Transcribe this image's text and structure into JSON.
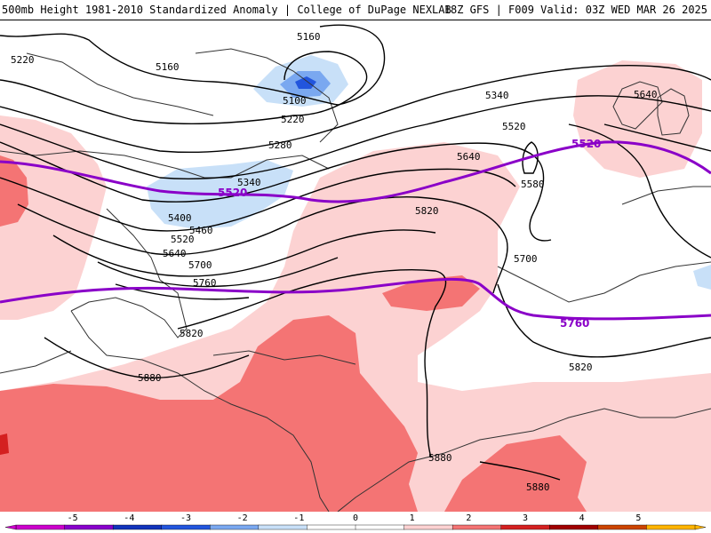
{
  "header": {
    "left": "500mb Height 1981-2010 Standardized Anomaly | College of DuPage NEXLAB",
    "right": "18Z GFS | F009 Valid: 03Z WED MAR 26 2025"
  },
  "map": {
    "contour_labels": [
      "5160",
      "5160",
      "5220",
      "5100",
      "5220",
      "5280",
      "5340",
      "5400",
      "5460",
      "5520",
      "5640",
      "5700",
      "5760",
      "5820",
      "5880",
      "5340",
      "5520",
      "5640",
      "5580",
      "5700",
      "5820",
      "5640",
      "5820",
      "5880",
      "5880"
    ],
    "highlight_labels": [
      "5520",
      "5520",
      "5760"
    ],
    "colors": {
      "highlight_contour": "#8a00c8",
      "height_contour": "#000000",
      "coast": "#333333",
      "pos1": "#fcd2d2",
      "pos2": "#f47474",
      "pos3": "#d42020",
      "neg1": "#c8e0f8",
      "neg2": "#7aa8f0",
      "neg3": "#2255dd"
    }
  },
  "scale": {
    "ticks": [
      "-5",
      "-4",
      "-3",
      "-2",
      "-1",
      "0",
      "1",
      "2",
      "3",
      "4",
      "5"
    ],
    "colors": [
      "#cc00cc",
      "#8800cc",
      "#1133bb",
      "#2255dd",
      "#7aa8f0",
      "#c8e0f8",
      "#ffffff",
      "#ffffff",
      "#fcd2d2",
      "#f47474",
      "#d42020",
      "#a00000",
      "#cc4400",
      "#ffb400"
    ]
  }
}
